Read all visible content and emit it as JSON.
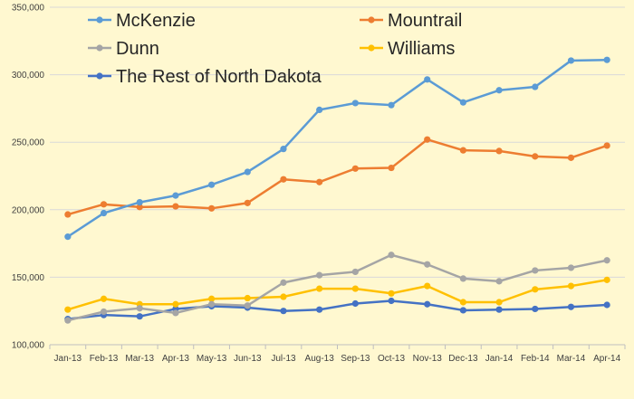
{
  "chart_data": {
    "type": "line",
    "title": "",
    "xlabel": "",
    "ylabel": "",
    "categories": [
      "Jan-13",
      "Feb-13",
      "Mar-13",
      "Apr-13",
      "May-13",
      "Jun-13",
      "Jul-13",
      "Aug-13",
      "Sep-13",
      "Oct-13",
      "Nov-13",
      "Dec-13",
      "Jan-14",
      "Feb-14",
      "Mar-14",
      "Apr-14"
    ],
    "ylim": [
      100000,
      350000
    ],
    "yticks": [
      100000,
      150000,
      200000,
      250000,
      300000,
      350000
    ],
    "ytick_labels": [
      "100,000",
      "150,000",
      "200,000",
      "250,000",
      "300,000",
      "350,000"
    ],
    "grid": "horizontal",
    "legend_position": "top-left",
    "series": [
      {
        "name": "McKenzie",
        "color": "#5b9bd5",
        "values": [
          180000,
          197500,
          205500,
          210500,
          218500,
          228000,
          245000,
          274000,
          279000,
          277500,
          296500,
          279500,
          288500,
          291000,
          310500,
          311000
        ]
      },
      {
        "name": "Mountrail",
        "color": "#ed7d31",
        "values": [
          196500,
          204000,
          202000,
          202500,
          201000,
          205000,
          222500,
          220500,
          230500,
          231000,
          252000,
          244000,
          243500,
          239500,
          238500,
          247500
        ]
      },
      {
        "name": "Dunn",
        "color": "#a5a5a5",
        "values": [
          118000,
          124500,
          127000,
          123500,
          130000,
          129000,
          146000,
          151500,
          154000,
          166500,
          159500,
          149000,
          147000,
          155000,
          157000,
          162500
        ]
      },
      {
        "name": "Williams",
        "color": "#ffc000",
        "values": [
          126000,
          134000,
          130000,
          130000,
          134000,
          134500,
          135500,
          141500,
          141500,
          138000,
          143500,
          131500,
          131500,
          141000,
          143500,
          148000
        ]
      },
      {
        "name": "The Rest of North Dakota",
        "color": "#4472c4",
        "values": [
          119000,
          122000,
          121000,
          126500,
          128500,
          127500,
          125000,
          126000,
          130500,
          132500,
          130000,
          125500,
          126000,
          126500,
          128000,
          129500
        ]
      }
    ]
  }
}
